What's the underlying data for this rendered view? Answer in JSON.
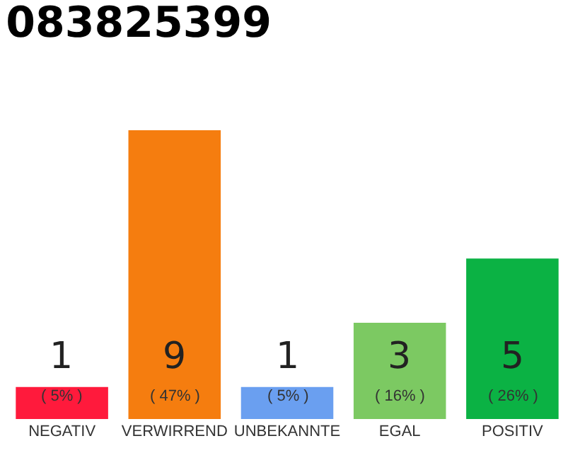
{
  "chart_data": {
    "type": "bar",
    "title": "083825399",
    "categories": [
      "NEGATIV",
      "VERWIRREND",
      "UNBEKANNTE",
      "EGAL",
      "POSITIV"
    ],
    "values": [
      1,
      9,
      1,
      3,
      5
    ],
    "colors": [
      "#ff1a3c",
      "#f57d0f",
      "#6a9ff0",
      "#7cc962",
      "#0bb244"
    ],
    "ylim": [
      0,
      9
    ],
    "data_labels": true,
    "annotations": [
      "( 5% )",
      "( 47% )",
      "( 5% )",
      "( 16% )",
      "( 26% )"
    ]
  }
}
